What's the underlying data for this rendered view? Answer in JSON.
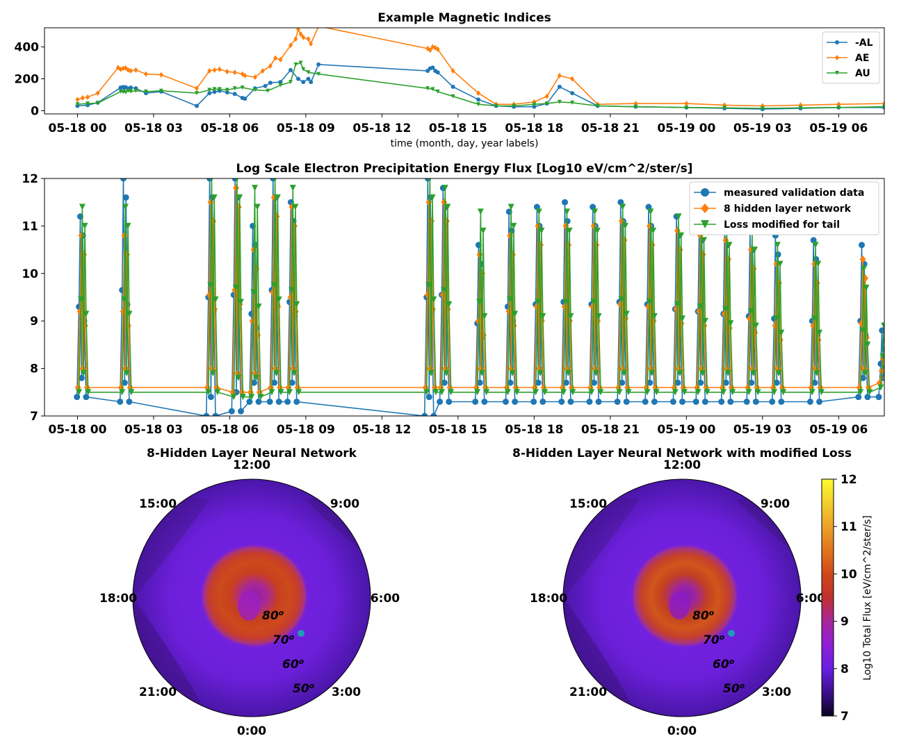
{
  "figure": {
    "colorbar_label": "Log10 Total Flux [eV/cm^2/ster/s]",
    "colorbar_ticks": [
      7,
      8,
      9,
      10,
      11,
      12
    ]
  },
  "chart_data": [
    {
      "type": "line",
      "title": "Example Magnetic Indices",
      "xlabel": "time (month, day, year labels)",
      "ylabel": "",
      "x_unit": "hours since 05-18 00:00",
      "xlim": [
        -1.3,
        31.8
      ],
      "ylim": [
        -20,
        520
      ],
      "x_ticks": [
        0,
        3,
        6,
        9,
        12,
        15,
        18,
        21,
        24,
        27,
        30
      ],
      "x_tick_labels": [
        "05-18 00",
        "05-18 03",
        "05-18 06",
        "05-18 09",
        "05-18 12",
        "05-18 15",
        "05-18 18",
        "05-18 21",
        "05-19 00",
        "05-19 03",
        "05-19 06"
      ],
      "y_ticks": [
        0,
        200,
        400
      ],
      "legend_position": "top-right",
      "series": [
        {
          "name": "-AL",
          "color": "#1f77b4",
          "marker": "dot",
          "x": [
            0,
            0.4,
            0.8,
            1.7,
            1.8,
            1.85,
            1.9,
            2,
            2.1,
            2.3,
            2.7,
            3.3,
            4.7,
            5.2,
            5.4,
            5.6,
            5.9,
            6.2,
            6.5,
            6.6,
            7,
            7.4,
            7.6,
            8,
            8.4,
            8.7,
            8.9,
            9.1,
            9.2,
            9.5,
            13.8,
            13.9,
            14,
            14.1,
            14.2,
            14.8,
            15.8,
            16.5,
            17.2,
            18,
            18.5,
            19,
            19.5,
            20.5,
            22,
            24,
            25.5,
            27,
            28.5,
            30,
            31.8
          ],
          "y": [
            30,
            35,
            50,
            145,
            148,
            143,
            147,
            138,
            145,
            140,
            110,
            120,
            30,
            110,
            118,
            125,
            115,
            105,
            80,
            75,
            140,
            155,
            175,
            180,
            255,
            200,
            180,
            200,
            180,
            290,
            250,
            265,
            270,
            250,
            240,
            150,
            70,
            30,
            25,
            25,
            45,
            150,
            110,
            30,
            25,
            20,
            15,
            10,
            15,
            20,
            20
          ]
        },
        {
          "name": "AE",
          "color": "#ff7f0e",
          "marker": "diamond",
          "x": [
            0,
            0.2,
            0.4,
            0.8,
            1.6,
            1.7,
            1.8,
            1.9,
            2,
            2.1,
            2.3,
            2.7,
            3.3,
            4.7,
            5.2,
            5.4,
            5.6,
            5.9,
            6.2,
            6.5,
            6.6,
            7,
            7.3,
            7.6,
            7.8,
            8,
            8.4,
            8.6,
            8.7,
            8.8,
            8.9,
            9.1,
            9.2,
            9.5,
            13.8,
            13.9,
            14,
            14.1,
            14.2,
            14.8,
            15.8,
            16.5,
            17.2,
            18,
            18.5,
            19,
            19.5,
            20.5,
            22,
            24,
            25.5,
            27,
            28.5,
            30,
            31.8
          ],
          "y": [
            70,
            80,
            85,
            110,
            270,
            260,
            265,
            268,
            255,
            250,
            255,
            230,
            225,
            140,
            250,
            255,
            260,
            245,
            240,
            230,
            220,
            210,
            250,
            280,
            330,
            320,
            410,
            450,
            510,
            480,
            460,
            450,
            420,
            530,
            390,
            380,
            400,
            395,
            385,
            250,
            110,
            40,
            40,
            55,
            90,
            220,
            200,
            40,
            45,
            45,
            35,
            30,
            35,
            40,
            45
          ]
        },
        {
          "name": "AU",
          "color": "#2ca02c",
          "marker": "triangle-down",
          "x": [
            0,
            0.4,
            0.8,
            1.7,
            1.8,
            1.9,
            2,
            2.1,
            2.3,
            2.7,
            3.3,
            4.7,
            5.2,
            5.4,
            5.6,
            5.9,
            6.2,
            6.5,
            7,
            7.5,
            8,
            8.4,
            8.6,
            8.8,
            8.9,
            9.1,
            9.5,
            13.8,
            14,
            14.2,
            14.8,
            15.8,
            16.5,
            17.2,
            18,
            18.5,
            19,
            19.5,
            20.5,
            22,
            24,
            25.5,
            27,
            28.5,
            30,
            31.8
          ],
          "y": [
            40,
            45,
            48,
            120,
            118,
            115,
            125,
            120,
            125,
            120,
            125,
            110,
            130,
            135,
            135,
            130,
            140,
            145,
            130,
            125,
            160,
            180,
            290,
            300,
            260,
            240,
            230,
            140,
            135,
            120,
            90,
            40,
            30,
            30,
            40,
            45,
            55,
            50,
            30,
            25,
            20,
            18,
            15,
            18,
            20,
            25
          ]
        }
      ]
    },
    {
      "type": "line",
      "title": "Log Scale Electron Precipitation Energy Flux [Log10 eV/cm^2/ster/s]",
      "xlabel": "",
      "ylabel": "",
      "x_unit": "hours since 05-18 00:00",
      "xlim": [
        -1.3,
        31.8
      ],
      "ylim": [
        7,
        12
      ],
      "x_ticks": [
        0,
        3,
        6,
        9,
        12,
        15,
        18,
        21,
        24,
        27,
        30
      ],
      "x_tick_labels": [
        "05-18 00",
        "05-18 03",
        "05-18 06",
        "05-18 09",
        "05-18 12",
        "05-18 15",
        "05-18 18",
        "05-18 21",
        "05-19 00",
        "05-19 03",
        "05-19 06"
      ],
      "y_ticks": [
        7,
        8,
        9,
        10,
        11,
        12
      ],
      "legend_position": "top-right",
      "series": [
        {
          "name": "measured validation data",
          "color": "#1f77b4",
          "marker": "dot"
        },
        {
          "name": "8 hidden layer network",
          "color": "#ff7f0e",
          "marker": "diamond"
        },
        {
          "name": "Loss modified for tail",
          "color": "#2ca02c",
          "marker": "triangle-down"
        }
      ],
      "passes": [
        {
          "t": 0.2,
          "peak_measured": 11.2,
          "peak_network": 10.8,
          "peak_tail": 11.4,
          "base_measured": 7.4,
          "base_network": 7.6,
          "base_tail": 7.5
        },
        {
          "t": 1.9,
          "peak_measured": 12.0,
          "peak_network": 10.8,
          "peak_tail": 11.4,
          "base_measured": 7.3,
          "base_network": 7.6,
          "base_tail": 7.5
        },
        {
          "t": 5.3,
          "peak_measured": 12.0,
          "peak_network": 11.5,
          "peak_tail": 12.0,
          "base_measured": 7.0,
          "base_network": 7.6,
          "base_tail": 7.5
        },
        {
          "t": 6.3,
          "peak_measured": 12.0,
          "peak_network": 11.8,
          "peak_tail": 12.0,
          "base_measured": 7.1,
          "base_network": 7.5,
          "base_tail": 7.4
        },
        {
          "t": 7.0,
          "peak_measured": 11.0,
          "peak_network": 10.5,
          "peak_tail": 11.8,
          "base_measured": 7.3,
          "base_network": 7.5,
          "base_tail": 7.4
        },
        {
          "t": 7.8,
          "peak_measured": 12.0,
          "peak_network": 11.6,
          "peak_tail": 12.0,
          "base_measured": 7.3,
          "base_network": 7.6,
          "base_tail": 7.5
        },
        {
          "t": 8.5,
          "peak_measured": 11.5,
          "peak_network": 11.4,
          "peak_tail": 11.8,
          "base_measured": 7.3,
          "base_network": 7.6,
          "base_tail": 7.5
        },
        {
          "t": 13.9,
          "peak_measured": 12.0,
          "peak_network": 11.5,
          "peak_tail": 12.0,
          "base_measured": 7.0,
          "base_network": 7.6,
          "base_tail": 7.5
        },
        {
          "t": 14.5,
          "peak_measured": 11.8,
          "peak_network": 11.5,
          "peak_tail": 11.8,
          "base_measured": 7.3,
          "base_network": 7.6,
          "base_tail": 7.5
        },
        {
          "t": 15.9,
          "peak_measured": 10.6,
          "peak_network": 10.4,
          "peak_tail": 11.3,
          "base_measured": 7.3,
          "base_network": 7.6,
          "base_tail": 7.5
        },
        {
          "t": 17.1,
          "peak_measured": 11.3,
          "peak_network": 10.8,
          "peak_tail": 11.4,
          "base_measured": 7.3,
          "base_network": 7.6,
          "base_tail": 7.5
        },
        {
          "t": 18.2,
          "peak_measured": 11.4,
          "peak_network": 11.0,
          "peak_tail": 11.3,
          "base_measured": 7.3,
          "base_network": 7.6,
          "base_tail": 7.5
        },
        {
          "t": 19.3,
          "peak_measured": 11.5,
          "peak_network": 11.0,
          "peak_tail": 11.3,
          "base_measured": 7.3,
          "base_network": 7.6,
          "base_tail": 7.5
        },
        {
          "t": 20.4,
          "peak_measured": 11.4,
          "peak_network": 11.0,
          "peak_tail": 11.3,
          "base_measured": 7.3,
          "base_network": 7.6,
          "base_tail": 7.5
        },
        {
          "t": 21.5,
          "peak_measured": 11.5,
          "peak_network": 11.1,
          "peak_tail": 11.4,
          "base_measured": 7.3,
          "base_network": 7.6,
          "base_tail": 7.5
        },
        {
          "t": 22.6,
          "peak_measured": 11.4,
          "peak_network": 11.0,
          "peak_tail": 11.3,
          "base_measured": 7.3,
          "base_network": 7.6,
          "base_tail": 7.5
        },
        {
          "t": 23.7,
          "peak_measured": 11.2,
          "peak_network": 10.9,
          "peak_tail": 11.2,
          "base_measured": 7.3,
          "base_network": 7.6,
          "base_tail": 7.5
        },
        {
          "t": 24.6,
          "peak_measured": 11.1,
          "peak_network": 10.8,
          "peak_tail": 11.1,
          "base_measured": 7.3,
          "base_network": 7.6,
          "base_tail": 7.5
        },
        {
          "t": 25.6,
          "peak_measured": 11.0,
          "peak_network": 10.7,
          "peak_tail": 11.0,
          "base_measured": 7.3,
          "base_network": 7.6,
          "base_tail": 7.5
        },
        {
          "t": 26.6,
          "peak_measured": 10.9,
          "peak_network": 10.5,
          "peak_tail": 10.9,
          "base_measured": 7.3,
          "base_network": 7.6,
          "base_tail": 7.5
        },
        {
          "t": 27.6,
          "peak_measured": 10.8,
          "peak_network": 10.2,
          "peak_tail": 10.6,
          "base_measured": 7.3,
          "base_network": 7.6,
          "base_tail": 7.5
        },
        {
          "t": 29.1,
          "peak_measured": 10.7,
          "peak_network": 10.2,
          "peak_tail": 10.6,
          "base_measured": 7.3,
          "base_network": 7.6,
          "base_tail": 7.5
        },
        {
          "t": 31.0,
          "peak_measured": 10.6,
          "peak_network": 10.3,
          "peak_tail": 10.1,
          "base_measured": 7.4,
          "base_network": 7.6,
          "base_tail": 7.5
        },
        {
          "t": 31.8,
          "peak_measured": 8.8,
          "peak_network": 8.2,
          "peak_tail": 8.9,
          "base_measured": 7.4,
          "base_network": 7.7,
          "base_tail": 7.6
        }
      ]
    },
    {
      "type": "heatmap",
      "projection": "polar",
      "title": "8-Hidden Layer Neural Network",
      "mlt_labels": [
        "12:00",
        "9:00",
        "6:00",
        "3:00",
        "0:00",
        "21:00",
        "18:00",
        "15:00"
      ],
      "latitude_labels": [
        "80",
        "70",
        "60",
        "50"
      ],
      "latitude_unit": "o",
      "colormap": "plasma-like",
      "clim": [
        7,
        12
      ],
      "auroral_oval_peak": 10.3,
      "background": 7.8,
      "satellite_marker_color": "#1f9bb4"
    },
    {
      "type": "heatmap",
      "projection": "polar",
      "title": "8-Hidden Layer Neural Network with modified Loss",
      "mlt_labels": [
        "12:00",
        "9:00",
        "6:00",
        "3:00",
        "0:00",
        "21:00",
        "18:00",
        "15:00"
      ],
      "latitude_labels": [
        "80",
        "70",
        "60",
        "50"
      ],
      "latitude_unit": "o",
      "colormap": "plasma-like",
      "clim": [
        7,
        12
      ],
      "auroral_oval_peak": 10.4,
      "background": 7.8,
      "satellite_marker_color": "#1f9bb4"
    }
  ]
}
